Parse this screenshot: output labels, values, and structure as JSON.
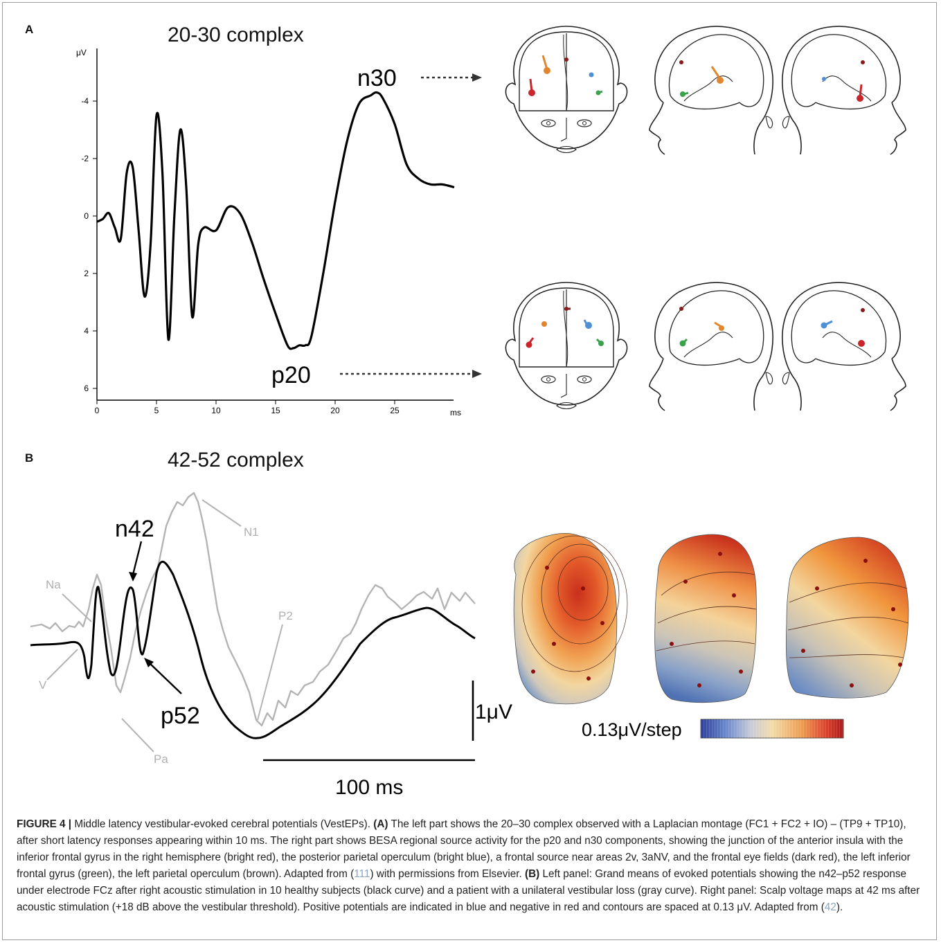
{
  "panel_a": {
    "letter": "A",
    "title": "20-30 complex",
    "y_unit": "μV",
    "x_unit": "ms",
    "label_n30": "n30",
    "label_p20": "p20"
  },
  "panel_b": {
    "letter": "B",
    "title": "42-52 complex",
    "label_n42": "n42",
    "label_p52": "p52",
    "label_n1": "N1",
    "label_p2": "P2",
    "label_na": "Na",
    "label_v": "V",
    "label_pa": "Pa",
    "scale_v": "1μV",
    "scale_t": "100 ms",
    "colorbar_label": "0.13μV/step"
  },
  "colors": {
    "red": "#c8262b",
    "orange": "#e0862e",
    "blue": "#4f8fd6",
    "green": "#3aa24a",
    "black_curve": "#000000",
    "gray_curve": "#b4b4b4",
    "frame": "#9a9a9a"
  },
  "chart_data": {
    "type": "line",
    "title": "20-30 complex",
    "xlabel": "ms",
    "ylabel": "μV",
    "x_ticks": [
      "0",
      "5",
      "10",
      "15",
      "20",
      "25"
    ],
    "y_ticks": [
      "-4",
      "-2",
      "0",
      "2",
      "4",
      "6"
    ],
    "xlim": [
      0,
      30
    ],
    "ylim": [
      -6,
      6.5
    ],
    "y_inverted": true,
    "series": [
      {
        "x": [
          0,
          0.5,
          1,
          1.5,
          2,
          2.5,
          3,
          3.5,
          4,
          4.5,
          5,
          5.5,
          6,
          6.5,
          7,
          7.5,
          8,
          8.5,
          9,
          10,
          11,
          12,
          13,
          14,
          15,
          16,
          16.5,
          17,
          17.5,
          18,
          19,
          20,
          21,
          22,
          23,
          23.5,
          24,
          25,
          26,
          27,
          28,
          29,
          30
        ],
        "values": [
          0.2,
          0.1,
          -0.1,
          0.4,
          0.8,
          -1.5,
          -1.7,
          0.5,
          2.8,
          1.0,
          -3.5,
          -1.5,
          4.3,
          0.0,
          -3.0,
          -1.0,
          3.5,
          1.0,
          0.4,
          0.5,
          -0.3,
          -0.1,
          0.9,
          2.2,
          3.4,
          4.5,
          4.6,
          4.5,
          4.5,
          4.2,
          2.0,
          -0.5,
          -2.6,
          -3.9,
          -4.2,
          -4.3,
          -4.1,
          -3.2,
          -1.8,
          -1.3,
          -1.1,
          -1.1,
          -1.0
        ]
      }
    ]
  },
  "caption": {
    "fig_label": "FIGURE 4 |",
    "t1": " Middle latency vestibular-evoked cerebral potentials (VestEPs). ",
    "a_label": "(A)",
    "t2": " The left part shows the 20–30 complex observed with a Laplacian montage (FC1 + FC2 + IO) – (TP9 + TP10), after short latency responses appearing within 10 ms. The right part shows BESA regional source activity for the p20 and n30 components, showing the junction of the anterior insula with the inferior frontal gyrus in the right hemisphere (bright red), the posterior parietal operculum (bright blue), a frontal source near areas 2v, 3aNV, and the frontal eye fields (dark red), the left inferior frontal gyrus (green), the left parietal operculum (brown). Adapted from (",
    "ref1": "111",
    "t3": ") with permissions from Elsevier. ",
    "b_label": "(B)",
    "t4": " Left panel: Grand means of evoked potentials showing the n42–p52 response under electrode FCz after right acoustic stimulation in 10 healthy subjects (black curve) and a patient with a unilateral vestibular loss (gray curve). Right panel: Scalp voltage maps at 42 ms after acoustic stimulation (+18 dB above the vestibular threshold). Positive potentials are indicated in blue and negative in red and contours are spaced at 0.13 μV. Adapted from (",
    "ref2": "42",
    "t5": ")."
  }
}
